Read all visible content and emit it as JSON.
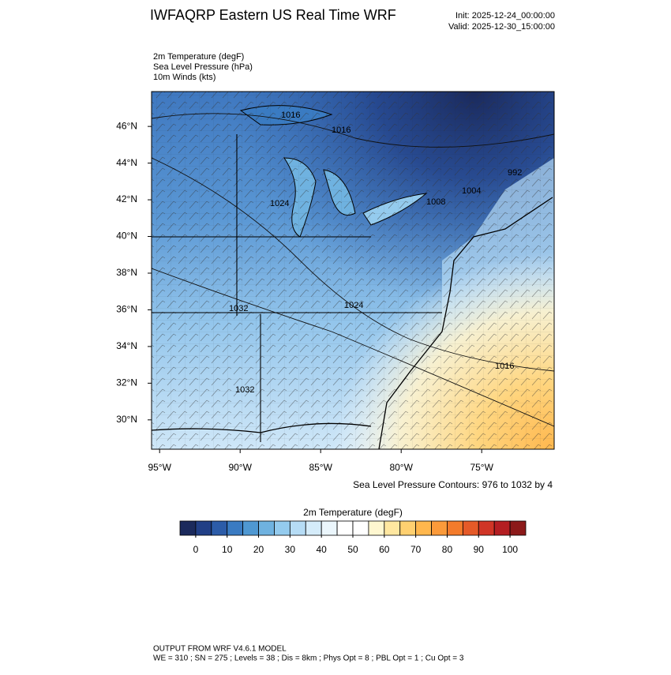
{
  "header": {
    "title": "IWFAQRP Eastern US Real Time WRF",
    "init": "Init: 2025-12-24_00:00:00",
    "valid": "Valid: 2025-12-30_15:00:00"
  },
  "fields": [
    "2m Temperature   (degF)",
    "Sea Level Pressure   (hPa)",
    "10m Winds   (kts)"
  ],
  "map": {
    "ylim": [
      28.4,
      47.9
    ],
    "xlim": [
      -95.5,
      -70.5
    ],
    "lat_ticks": [
      {
        "value": 46,
        "label": "46°N"
      },
      {
        "value": 44,
        "label": "44°N"
      },
      {
        "value": 42,
        "label": "42°N"
      },
      {
        "value": 40,
        "label": "40°N"
      },
      {
        "value": 38,
        "label": "38°N"
      },
      {
        "value": 36,
        "label": "36°N"
      },
      {
        "value": 34,
        "label": "34°N"
      },
      {
        "value": 32,
        "label": "32°N"
      },
      {
        "value": 30,
        "label": "30°N"
      }
    ],
    "lon_ticks": [
      {
        "value": -95,
        "label": "95°W"
      },
      {
        "value": -90,
        "label": "90°W"
      },
      {
        "value": -85,
        "label": "85°W"
      },
      {
        "value": -80,
        "label": "80°W"
      },
      {
        "value": -75,
        "label": "75°W"
      }
    ],
    "contour_labels": [
      "1016",
      "1016",
      "992",
      "1004",
      "1008",
      "1024",
      "1032",
      "1024",
      "1032",
      "1016"
    ],
    "contour_note": "Sea Level Pressure Contours: 976 to 1032 by 4"
  },
  "colorbar": {
    "title": "2m Temperature  (degF)",
    "lim": [
      -5,
      105
    ],
    "ticks": [
      0,
      10,
      20,
      30,
      40,
      50,
      60,
      70,
      80,
      90,
      100
    ],
    "colors": [
      "#1b2a5c",
      "#213f86",
      "#2c5ca8",
      "#3a7bc2",
      "#4f98d2",
      "#6fb2e0",
      "#94cbee",
      "#b6dcf5",
      "#d5ecfa",
      "#ebf6fc",
      "#ffffff",
      "#ffffff",
      "#fff7d0",
      "#ffe7a0",
      "#ffd070",
      "#ffb74d",
      "#fb9a3a",
      "#f37b2b",
      "#e55a28",
      "#d03526",
      "#b41e22",
      "#8c1a1a"
    ]
  },
  "footer": [
    "OUTPUT FROM WRF V4.6.1 MODEL",
    "WE = 310 ; SN = 275 ; Levels = 38 ; Dis = 8km ; Phys Opt = 8 ; PBL Opt = 1 ; Cu Opt = 3"
  ]
}
